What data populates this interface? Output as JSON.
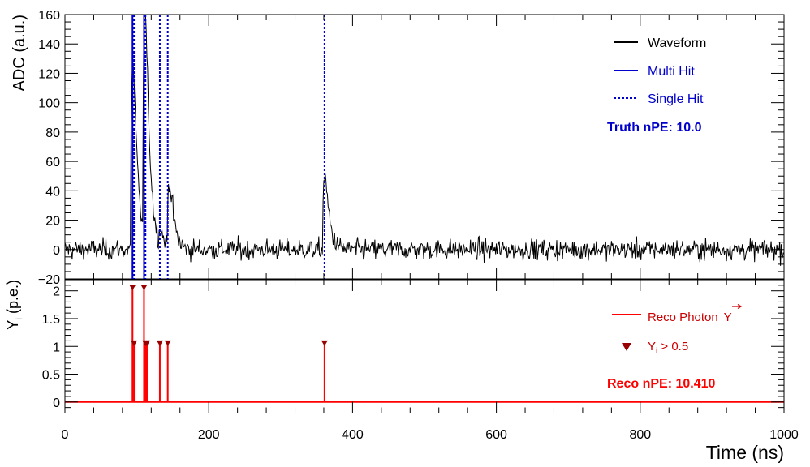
{
  "chart_data": [
    {
      "type": "line",
      "xlim": [
        0,
        1000
      ],
      "ylim": [
        -20,
        160
      ],
      "ylabel": "ADC (a.u.)",
      "x_ticks": [
        "0",
        "200",
        "400",
        "600",
        "800",
        "1000"
      ],
      "y_ticks": [
        "−20",
        "0",
        "20",
        "40",
        "60",
        "80",
        "100",
        "120",
        "140",
        "160"
      ],
      "y_tick_values": [
        -20,
        0,
        20,
        40,
        60,
        80,
        100,
        120,
        140,
        160
      ],
      "legend_position": "top-right",
      "legend": {
        "waveform": "Waveform",
        "multi_hit": "Multi Hit",
        "single_hit": "Single Hit"
      },
      "annotation": "Truth nPE: 10.0",
      "series": [
        {
          "name": "Waveform",
          "color": "#000000",
          "noise_rms": 3.5
        },
        {
          "name": "Multi Hit",
          "color": "#0000cc",
          "x": [
            94,
            110
          ]
        },
        {
          "name": "Single Hit",
          "color": "#0000cc",
          "x": [
            96,
            112,
            132,
            143,
            361
          ]
        }
      ],
      "pulses": [
        {
          "t": 91,
          "amplitude": 118
        },
        {
          "t": 108,
          "amplitude": 145
        },
        {
          "t": 130,
          "amplitude": 8
        },
        {
          "t": 142,
          "amplitude": 41
        },
        {
          "t": 358,
          "amplitude": 46
        }
      ]
    },
    {
      "type": "bar",
      "xlim": [
        0,
        1000
      ],
      "ylim": [
        -0.2,
        2.2
      ],
      "ylabel_main": "Y",
      "ylabel_sub": "i",
      "ylabel_rest": " (p.e.)",
      "xlabel": "Time (ns)",
      "x_ticks": [
        "0",
        "200",
        "400",
        "600",
        "800",
        "1000"
      ],
      "y_ticks": [
        "0",
        "0.5",
        "1",
        "1.5",
        "2"
      ],
      "y_tick_values": [
        0,
        0.5,
        1,
        1.5,
        2
      ],
      "legend_position": "top-right",
      "legend": {
        "reco_photon": "Reco Photon",
        "reco_photon_symbol": "Y",
        "threshold_main": "Y",
        "threshold_sub": "i",
        "threshold_rest": " > 0.5"
      },
      "annotation": "Reco nPE: 10.410",
      "series": [
        {
          "name": "Reco Photon",
          "color": "#ff0000",
          "x": [
            94,
            96,
            110,
            112,
            114,
            132,
            143,
            361
          ],
          "values": [
            2.05,
            1.05,
            2.05,
            1.05,
            1.05,
            1.05,
            1.05,
            1.05
          ]
        },
        {
          "name": "Y_i > 0.5",
          "color": "#990000"
        }
      ]
    }
  ]
}
